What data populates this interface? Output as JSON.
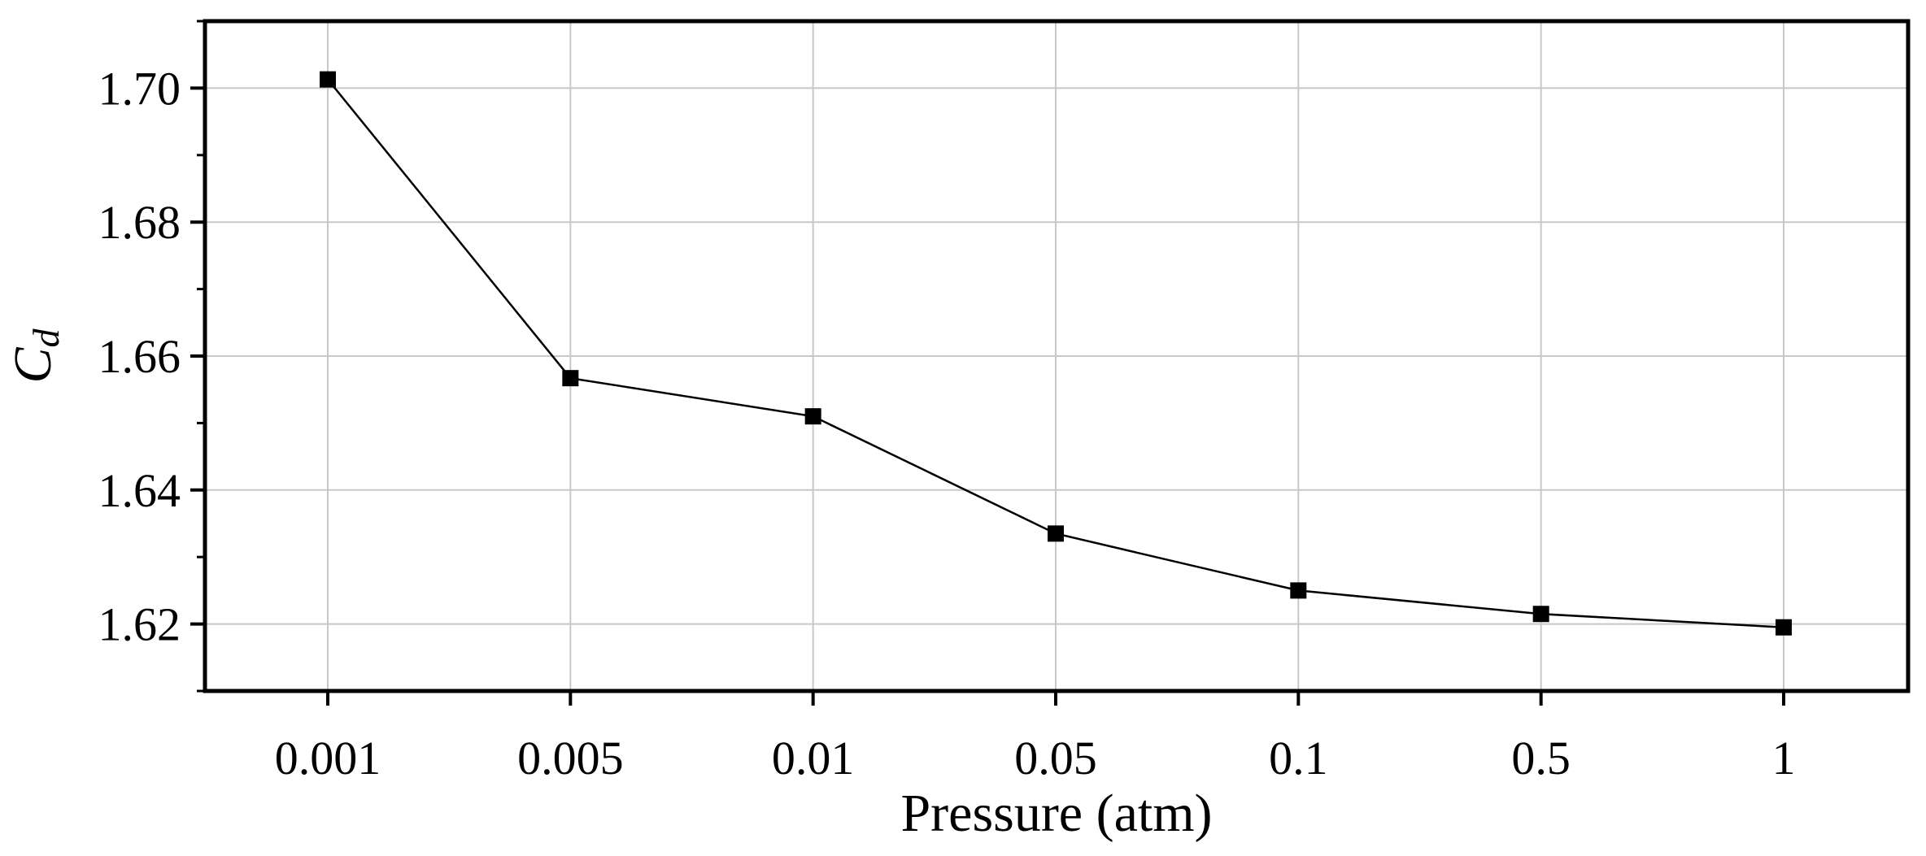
{
  "chart_data": {
    "type": "line",
    "title": "",
    "xlabel": "Pressure (atm)",
    "ylabel_main": "C",
    "ylabel_sub": "d",
    "categories": [
      "0.001",
      "0.005",
      "0.01",
      "0.05",
      "0.1",
      "0.5",
      "1"
    ],
    "series": [
      {
        "marker": "square",
        "values": [
          1.7013,
          1.6567,
          1.651,
          1.6335,
          1.625,
          1.6215,
          1.6195
        ]
      }
    ],
    "ylim": [
      1.61,
      1.71
    ],
    "yticks": [
      1.62,
      1.64,
      1.66,
      1.68,
      1.7
    ],
    "ytick_labels": [
      "1.62",
      "1.64",
      "1.66",
      "1.68",
      "1.70"
    ],
    "grid": true,
    "legend": "none",
    "colors": {
      "line": "#000000",
      "marker": "#000000",
      "grid": "#c8c8c8",
      "frame": "#000000"
    }
  }
}
